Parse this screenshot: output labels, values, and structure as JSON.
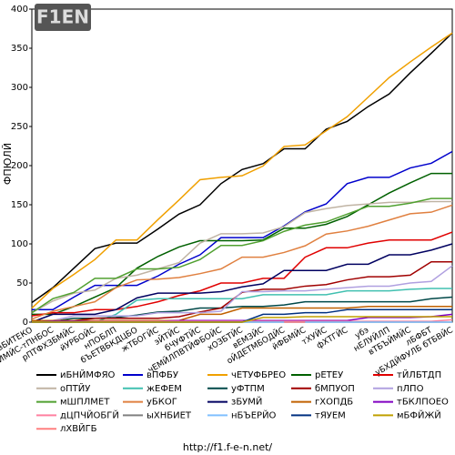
{
  "chart_data": {
    "type": "line",
    "logo": "F1EN",
    "ylabel": "ФПЮЛЙ",
    "footer": "http://f1.f-e-n.net/",
    "categories": [
      "вБИТЕКО",
      "еНЙМЙС-тПНБОС",
      "рПТФХЗБМЙС",
      "йУРБОЙС",
      "нПОБЛП",
      "бЪЕТВБКДЦБО",
      "жТБОГЙС",
      "эЙТЙС",
      "бЧУФТЙС",
      "чЕМЙЛПВТЙФБОЙС",
      "хОЗБТЙС",
      "вЕМЗЙС",
      "оЙДЕТМБОДЙС",
      "йФБМЙС",
      "тХУЙС",
      "фХТГЙС",
      "убэ",
      "нЕЛУЙЛП",
      "вТБЪЙМЙС",
      "лБФБТ",
      "уБХДЙФУЛБ бТБВЙС"
    ],
    "ylim": [
      0,
      400
    ],
    "yticks": [
      0,
      50,
      100,
      150,
      200,
      250,
      300,
      350,
      400
    ],
    "grid": false,
    "series": [
      {
        "name": "иБНЙМФЯО",
        "color": "#000000",
        "values": [
          25,
          44,
          69,
          94,
          101,
          101,
          119,
          138,
          150,
          177,
          195,
          202.5,
          221.5,
          221.5,
          246.5,
          256.5,
          275.5,
          291.5,
          318.5,
          343.5,
          369.5
        ]
      },
      {
        "name": "вПФБУ",
        "color": "#0000cc",
        "values": [
          16,
          16,
          32,
          47,
          47,
          47,
          59,
          74,
          86,
          108,
          108,
          108,
          123,
          141,
          151,
          177,
          185,
          185,
          197,
          203,
          218
        ]
      },
      {
        "name": "чЕТУФБРЕО",
        "color": "#f0a000",
        "values": [
          18,
          43,
          61,
          80,
          105,
          105,
          131,
          156,
          182,
          185,
          187,
          199.5,
          224.5,
          226.5,
          244.5,
          262.5,
          287.5,
          312.5,
          332.5,
          351.5,
          369.5
        ]
      },
      {
        "name": "рЕТЕУ",
        "color": "#006000",
        "values": [
          10,
          10,
          20,
          32,
          44,
          69,
          84,
          96,
          104,
          104,
          104,
          105,
          120,
          120,
          125,
          135,
          150,
          165,
          178,
          190,
          190
        ]
      },
      {
        "name": "тЙЛБТДП",
        "color": "#e00000",
        "values": [
          8,
          12,
          12,
          16,
          16,
          20,
          26,
          34,
          40,
          50,
          50,
          56,
          56,
          83,
          95,
          95,
          101,
          105,
          105,
          105,
          115
        ]
      },
      {
        "name": "оПТЙУ",
        "color": "#c0b4a4",
        "values": [
          12,
          27,
          37,
          41,
          56,
          60,
          68,
          76,
          101,
          113,
          113,
          114,
          122,
          140,
          145,
          149,
          151,
          153,
          153,
          154,
          154
        ]
      },
      {
        "name": "жЕФЕМ",
        "color": "#40c0b0",
        "values": [
          0,
          0,
          0,
          0,
          10,
          28,
          30,
          30,
          30,
          30,
          30,
          35,
          35,
          35,
          35,
          40,
          40,
          40,
          42,
          43,
          43
        ]
      },
      {
        "name": "уФТПМ",
        "color": "#004848",
        "values": [
          1,
          1,
          5,
          5,
          6,
          9,
          13,
          14,
          18,
          18,
          20,
          20,
          22,
          26,
          26,
          26,
          26,
          26,
          26,
          30,
          32
        ]
      },
      {
        "name": "бМПУОП",
        "color": "#a00000",
        "values": [
          0,
          0,
          2,
          5,
          5,
          5,
          5,
          7,
          13,
          18,
          38,
          42,
          42,
          46,
          48,
          54,
          58,
          58,
          60,
          77,
          77
        ]
      },
      {
        "name": "пЛПО",
        "color": "#b0a0e0",
        "values": [
          0,
          2,
          8,
          8,
          8,
          8,
          12,
          12,
          12,
          14,
          39,
          39,
          40,
          40,
          42,
          44,
          46,
          46,
          50,
          52,
          72
        ]
      },
      {
        "name": "мШПЛМЕТ",
        "color": "#50a030",
        "values": [
          12,
          30,
          38,
          56,
          56,
          68,
          68,
          70,
          80,
          98,
          98,
          104,
          116,
          124,
          128,
          138,
          148,
          148,
          152,
          158,
          158
        ]
      },
      {
        "name": "уБКОГ",
        "color": "#e08040",
        "values": [
          4,
          14,
          20,
          26,
          44,
          54,
          55,
          57,
          62,
          68,
          83,
          83,
          89,
          97.5,
          112.5,
          116.5,
          122.5,
          130.5,
          138.5,
          140.5,
          149.5
        ]
      },
      {
        "name": "зБУМЙ",
        "color": "#000060",
        "values": [
          0,
          10,
          10,
          10,
          16,
          31,
          37,
          37,
          37,
          39,
          45,
          49,
          66,
          66,
          66,
          74,
          74,
          86,
          86,
          92,
          100
        ]
      },
      {
        "name": "гХОПДБ",
        "color": "#c06000",
        "values": [
          2,
          2,
          2,
          2,
          2,
          2,
          2,
          2,
          10,
          10,
          18,
          18,
          18,
          18,
          18,
          18,
          20,
          20,
          20,
          20,
          20
        ]
      },
      {
        "name": "тБКЛПОЕО",
        "color": "#8000c0",
        "values": [
          0,
          1,
          1,
          1,
          1,
          1,
          1,
          2,
          2,
          2,
          2,
          2,
          2,
          2,
          2,
          2,
          6,
          6,
          6,
          7,
          10
        ]
      },
      {
        "name": "дЦПЧЙОБГЙ",
        "color": "#ff80a0",
        "values": [
          0,
          0,
          0,
          1,
          1,
          1,
          1,
          1,
          1,
          1,
          1,
          1,
          1,
          1,
          1,
          1,
          1,
          1,
          1,
          1,
          3
        ]
      },
      {
        "name": "ыХНБИЕТ",
        "color": "#808080",
        "values": [
          0,
          0,
          0,
          0,
          0,
          0,
          0,
          0,
          0,
          0,
          0,
          0,
          0,
          0,
          0,
          0,
          0,
          0,
          0,
          0,
          0
        ]
      },
      {
        "name": "нБЪЕРЙО",
        "color": "#80c0ff",
        "values": [
          0,
          0,
          0,
          0,
          0,
          0,
          0,
          0,
          0,
          0,
          0,
          0,
          0,
          0,
          0,
          0,
          0,
          0,
          0,
          0,
          0
        ]
      },
      {
        "name": "тЯУЕМ",
        "color": "#003080",
        "values": [
          0,
          0,
          0,
          0,
          0,
          0,
          0,
          0,
          0,
          0,
          0,
          10,
          10,
          12,
          12,
          16,
          16,
          16,
          16,
          16,
          16
        ]
      },
      {
        "name": "мБФЙЖЙ",
        "color": "#c0a000",
        "values": [
          0,
          0,
          0,
          0,
          0,
          0,
          0,
          0,
          0,
          0,
          0,
          6,
          6,
          7,
          7,
          7,
          7,
          7,
          7,
          7,
          7
        ]
      },
      {
        "name": "лХВЙГБ",
        "color": "#ff8080",
        "values": [
          null,
          null,
          null,
          null,
          null,
          null,
          null,
          null,
          null,
          null,
          null,
          null,
          0,
          0,
          null,
          null,
          null,
          null,
          null,
          null,
          null
        ]
      }
    ]
  }
}
